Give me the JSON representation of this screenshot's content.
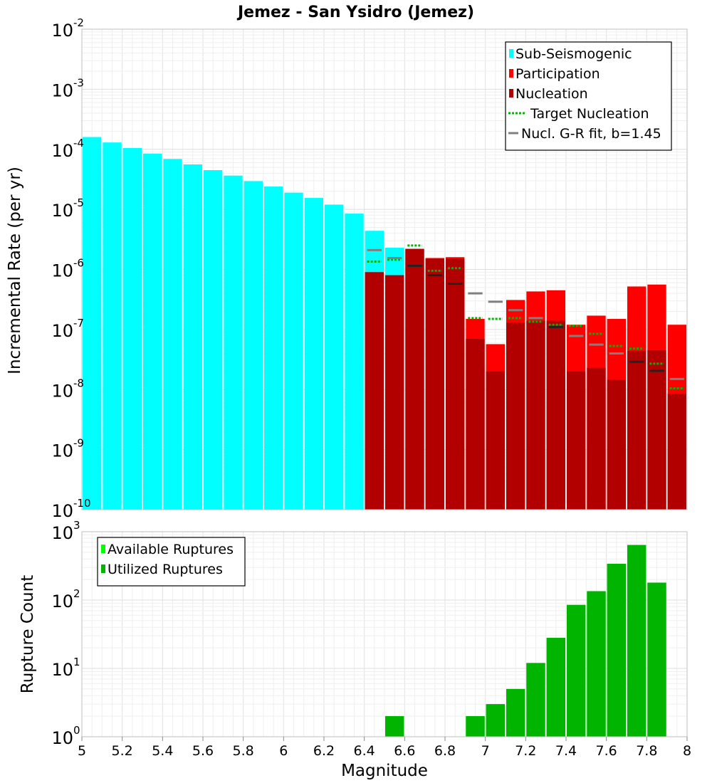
{
  "chart_data": [
    {
      "type": "bar",
      "title": "Jemez - San Ysidro (Jemez)",
      "xlabel": "",
      "ylabel": "Incremental Rate (per yr)",
      "xlim": [
        5,
        8
      ],
      "ylog": true,
      "ylim_exp": [
        -10,
        -2
      ],
      "y_tick_exponents": [
        "-2",
        "-3",
        "-4",
        "-5",
        "-6",
        "-7",
        "-8",
        "-9",
        "-10"
      ],
      "grid": true,
      "bar_width": 0.1,
      "legend_position": "top-right",
      "legend": [
        {
          "label": "Sub-Seismogenic",
          "kind": "box",
          "color": "#00ffff"
        },
        {
          "label": "Participation",
          "kind": "box",
          "color": "#ff0000"
        },
        {
          "label": "Nucleation",
          "kind": "box",
          "color": "#b20000"
        },
        {
          "label": "Target Nucleation",
          "kind": "dotted",
          "color": "#00b400"
        },
        {
          "label": "Nucl. G-R fit, b=1.45",
          "kind": "line",
          "color": "#808080"
        }
      ],
      "series": [
        {
          "name": "Sub-Seismogenic",
          "color": "#00ffff",
          "x": [
            5.05,
            5.15,
            5.25,
            5.35,
            5.45,
            5.55,
            5.65,
            5.75,
            5.85,
            5.95,
            6.05,
            6.15,
            6.25,
            6.35,
            6.45,
            6.55
          ],
          "values": [
            0.00016,
            0.00013,
            0.000105,
            8.5e-05,
            6.9e-05,
            5.6e-05,
            4.5e-05,
            3.65e-05,
            2.95e-05,
            2.4e-05,
            1.9e-05,
            1.55e-05,
            1.2e-05,
            8.5e-06,
            4.4e-06,
            2.3e-06
          ]
        },
        {
          "name": "Participation",
          "color": "#ff0000",
          "x": [
            6.45,
            6.55,
            6.65,
            6.75,
            6.85,
            6.95,
            7.05,
            7.15,
            7.25,
            7.35,
            7.45,
            7.55,
            7.65,
            7.75,
            7.85,
            7.95
          ],
          "values": [
            9e-07,
            8e-07,
            2.2e-06,
            1.55e-06,
            1.6e-06,
            1.5e-07,
            5.7e-08,
            3.1e-07,
            4.3e-07,
            4.5e-07,
            1.2e-07,
            1.7e-07,
            1.5e-07,
            5.2e-07,
            5.6e-07,
            1.2e-07
          ]
        },
        {
          "name": "Nucleation",
          "color": "#b20000",
          "x": [
            6.45,
            6.55,
            6.65,
            6.75,
            6.85,
            6.95,
            7.05,
            7.15,
            7.25,
            7.35,
            7.45,
            7.55,
            7.65,
            7.75,
            7.85,
            7.95
          ],
          "values": [
            9e-07,
            8e-07,
            2.2e-06,
            1.5e-06,
            1.5e-06,
            7e-08,
            2e-08,
            1.3e-07,
            1.4e-07,
            1.4e-07,
            2e-08,
            2.3e-08,
            1.45e-08,
            4.4e-08,
            4.5e-08,
            8.5e-09
          ]
        },
        {
          "name": "Target Nucleation",
          "color": "#00b400",
          "style": "dotted",
          "x": [
            6.45,
            6.55,
            6.65,
            6.75,
            6.85,
            6.95,
            7.05,
            7.15,
            7.25,
            7.35,
            7.45,
            7.55,
            7.65,
            7.75,
            7.85,
            7.95
          ],
          "values": [
            1.35e-06,
            1.45e-06,
            2.5e-06,
            9.5e-07,
            1.05e-06,
            1.55e-07,
            1.5e-07,
            1.55e-07,
            1.35e-07,
            1.2e-07,
            1.15e-07,
            8.5e-08,
            5.3e-08,
            4.8e-08,
            2.7e-08,
            1.05e-08
          ]
        },
        {
          "name": "Nucl. G-R fit, b=1.45",
          "color": "#808080",
          "style": "dash",
          "x": [
            6.45,
            6.55,
            6.65,
            6.75,
            6.85,
            6.95,
            7.05,
            7.15,
            7.25,
            7.35,
            7.45,
            7.55,
            7.65,
            7.75,
            7.85,
            7.95
          ],
          "values": [
            2.1e-06,
            1.55e-06,
            1.15e-06,
            8e-07,
            5.8e-07,
            4e-07,
            2.9e-07,
            2.1e-07,
            1.55e-07,
            1.1e-07,
            7.8e-08,
            5.6e-08,
            4e-08,
            2.9e-08,
            2.05e-08,
            1.5e-08
          ]
        }
      ]
    },
    {
      "type": "bar",
      "title": "",
      "xlabel": "Magnitude",
      "ylabel": "Rupture Count",
      "xlim": [
        5,
        8
      ],
      "ylog": true,
      "ylim_exp": [
        0,
        3
      ],
      "y_tick_exponents": [
        "3",
        "2",
        "1",
        "0"
      ],
      "x_tick_labels": [
        "5",
        "5.2",
        "5.4",
        "5.6",
        "5.8",
        "6",
        "6.2",
        "6.4",
        "6.6",
        "6.8",
        "7",
        "7.2",
        "7.4",
        "7.6",
        "7.8",
        "8"
      ],
      "grid": true,
      "bar_width": 0.1,
      "legend_position": "top-left",
      "legend": [
        {
          "label": "Available Ruptures",
          "kind": "box",
          "color": "#00ff00"
        },
        {
          "label": "Utilized Ruptures",
          "kind": "box",
          "color": "#00b400"
        }
      ],
      "series": [
        {
          "name": "Available Ruptures",
          "color": "#00ff00",
          "x": [
            6.55,
            6.75,
            6.95,
            7.05,
            7.15,
            7.25,
            7.35,
            7.45,
            7.55,
            7.65,
            7.75,
            7.85
          ],
          "values": [
            2,
            1,
            2,
            3,
            5,
            12,
            28,
            85,
            135,
            340,
            640,
            180
          ]
        },
        {
          "name": "Utilized Ruptures",
          "color": "#00b400",
          "x": [
            6.55,
            6.75,
            6.95,
            7.05,
            7.15,
            7.25,
            7.35,
            7.45,
            7.55,
            7.65,
            7.75,
            7.85
          ],
          "values": [
            2,
            1,
            2,
            3,
            5,
            12,
            28,
            85,
            135,
            340,
            640,
            180
          ]
        }
      ]
    }
  ]
}
